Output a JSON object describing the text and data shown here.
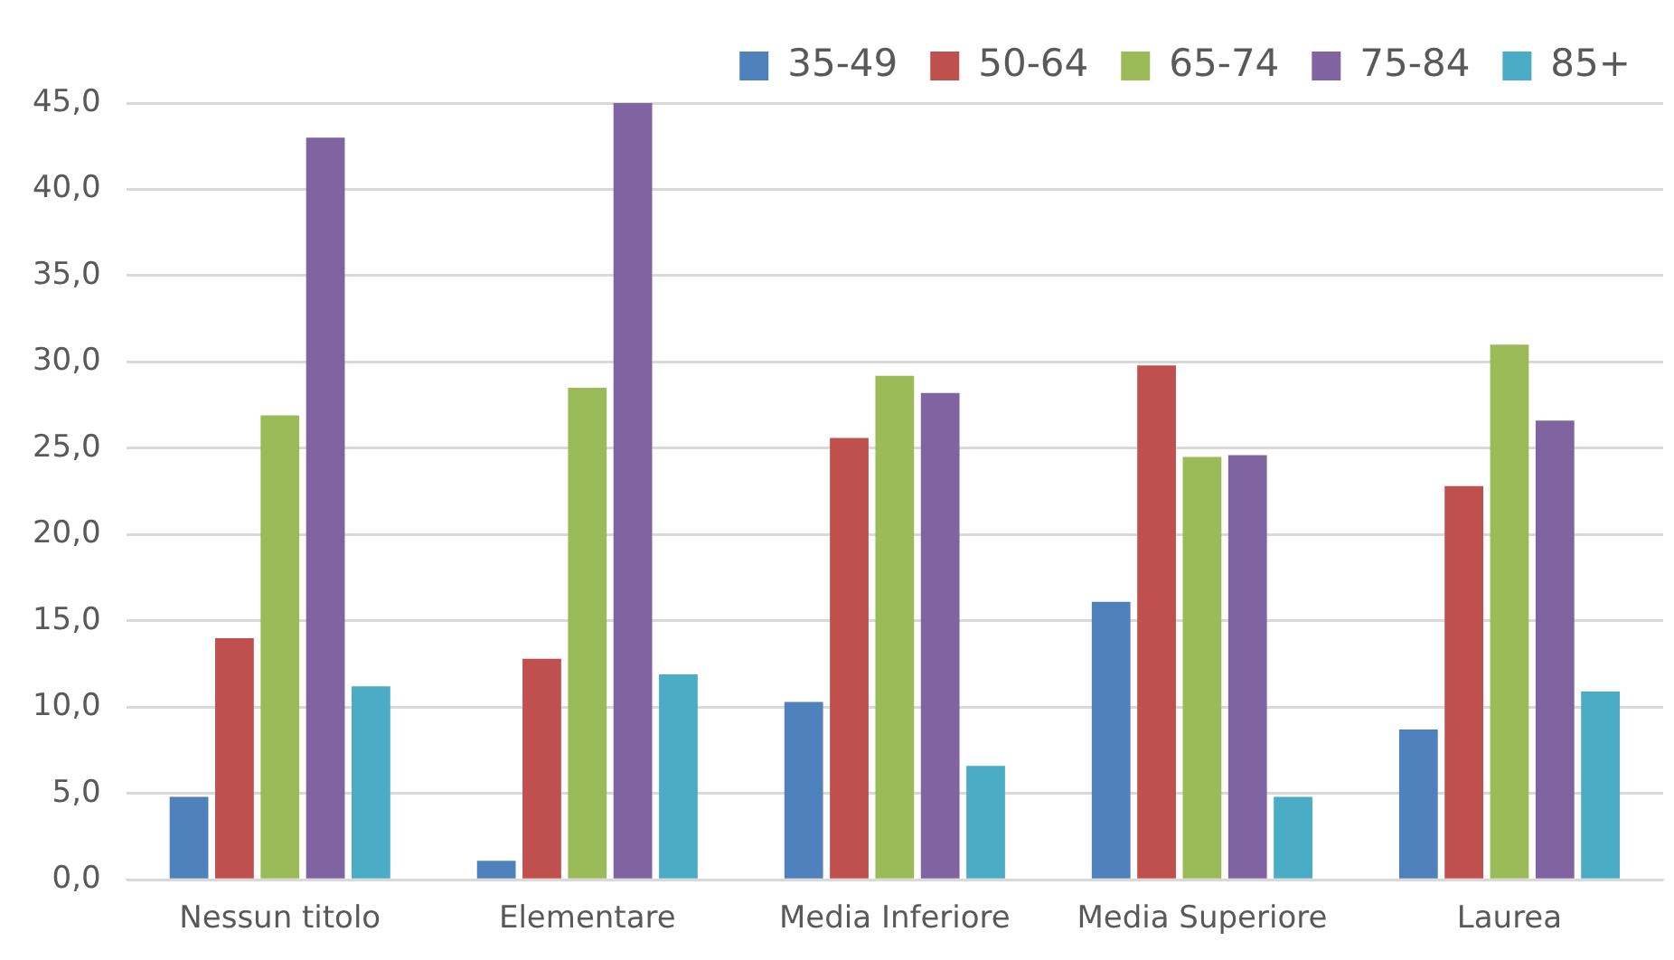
{
  "chart_data": {
    "type": "bar",
    "categories": [
      "Nessun titolo",
      "Elementare",
      "Media Inferiore",
      "Media Superiore",
      "Laurea"
    ],
    "series": [
      {
        "name": "35-49",
        "color": "#4f81bd",
        "values": [
          4.8,
          1.1,
          10.3,
          16.1,
          8.7
        ]
      },
      {
        "name": "50-64",
        "color": "#c0504d",
        "values": [
          14.0,
          12.8,
          25.6,
          29.8,
          22.8
        ]
      },
      {
        "name": "65-74",
        "color": "#9bbb59",
        "values": [
          26.9,
          28.5,
          29.2,
          24.5,
          31.0
        ]
      },
      {
        "name": "75-84",
        "color": "#8064a2",
        "values": [
          43.0,
          45.0,
          28.2,
          24.6,
          26.6
        ]
      },
      {
        "name": "85+",
        "color": "#4bacc6",
        "values": [
          11.2,
          11.9,
          6.6,
          4.8,
          10.9
        ]
      }
    ],
    "ylim": [
      0,
      45
    ],
    "yticks": [
      {
        "value": 0,
        "label": "0,0"
      },
      {
        "value": 5,
        "label": "5,0"
      },
      {
        "value": 10,
        "label": "10,0"
      },
      {
        "value": 15,
        "label": "15,0"
      },
      {
        "value": 20,
        "label": "20,0"
      },
      {
        "value": 25,
        "label": "25,0"
      },
      {
        "value": 30,
        "label": "30,0"
      },
      {
        "value": 35,
        "label": "35,0"
      },
      {
        "value": 40,
        "label": "40,0"
      },
      {
        "value": 45,
        "label": "45,0"
      }
    ],
    "grid": "y",
    "legend": "top right"
  }
}
